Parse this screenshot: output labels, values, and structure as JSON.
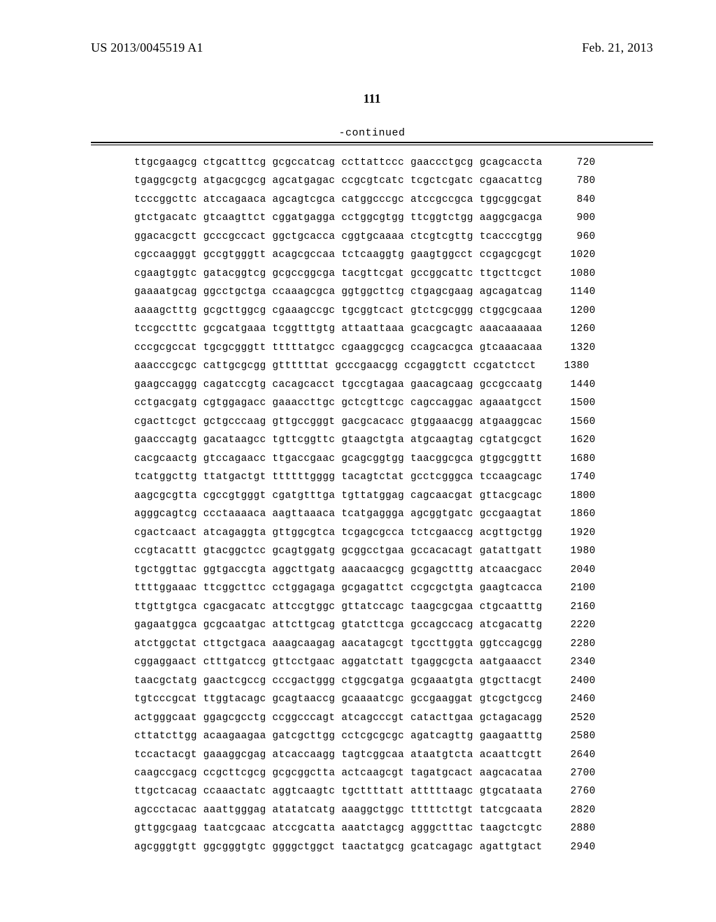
{
  "header": {
    "publication_number": "US 2013/0045519 A1",
    "publication_date": "Feb. 21, 2013"
  },
  "page_number": "111",
  "continued_label": "-continued",
  "sequence": {
    "font_family": "Courier New",
    "font_size_pt": 10,
    "text_color": "#000000",
    "background_color": "#ffffff",
    "rows": [
      {
        "groups": [
          "ttgcgaagcg",
          "ctgcatttcg",
          "gcgccatcag",
          "ccttattccc",
          "gaaccctgcg",
          "gcagcaccta"
        ],
        "pos": 720
      },
      {
        "groups": [
          "tgaggcgctg",
          "atgacgcgcg",
          "agcatgagac",
          "ccgcgtcatc",
          "tcgctcgatc",
          "cgaacattcg"
        ],
        "pos": 780
      },
      {
        "groups": [
          "tcccggcttc",
          "atccagaaca",
          "agcagtcgca",
          "catggcccgc",
          "atccgccgca",
          "tggcggcgat"
        ],
        "pos": 840
      },
      {
        "groups": [
          "gtctgacatc",
          "gtcaagttct",
          "cggatgagga",
          "cctggcgtgg",
          "ttcggtctgg",
          "aaggcgacga"
        ],
        "pos": 900
      },
      {
        "groups": [
          "ggacacgctt",
          "gcccgccact",
          "ggctgcacca",
          "cggtgcaaaa",
          "ctcgtcgttg",
          "tcacccgtgg"
        ],
        "pos": 960
      },
      {
        "groups": [
          "cgccaagggt",
          "gccgtgggtt",
          "acagcgccaa",
          "tctcaaggtg",
          "gaagtggcct",
          "ccgagcgcgt"
        ],
        "pos": 1020
      },
      {
        "groups": [
          "cgaagtggtc",
          "gatacggtcg",
          "gcgccggcga",
          "tacgttcgat",
          "gccggcattc",
          "ttgcttcgct"
        ],
        "pos": 1080
      },
      {
        "groups": [
          "gaaaatgcag",
          "ggcctgctga",
          "ccaaagcgca",
          "ggtggcttcg",
          "ctgagcgaag",
          "agcagatcag"
        ],
        "pos": 1140
      },
      {
        "groups": [
          "aaaagctttg",
          "gcgcttggcg",
          "cgaaagccgc",
          "tgcggtcact",
          "gtctcgcggg",
          "ctggcgcaaa"
        ],
        "pos": 1200
      },
      {
        "groups": [
          "tccgcctttc",
          "gcgcatgaaa",
          "tcggtttgtg",
          "attaattaaa",
          "gcacgcagtc",
          "aaacaaaaaa"
        ],
        "pos": 1260
      },
      {
        "groups": [
          "cccgcgccat",
          "tgcgcgggtt",
          "tttttatgcc",
          "cgaaggcgcg",
          "ccagcacgca",
          "gtcaaacaaa"
        ],
        "pos": 1320
      },
      {
        "groups": [
          "aaacccgcgc",
          "cattgcgcgg",
          "gttttttat",
          "gcccgaacgg",
          "ccgaggtctt",
          "ccgatctcct"
        ],
        "pos": 1380
      },
      {
        "groups": [
          "gaagccaggg",
          "cagatccgtg",
          "cacagcacct",
          "tgccgtagaa",
          "gaacagcaag",
          "gccgccaatg"
        ],
        "pos": 1440
      },
      {
        "groups": [
          "cctgacgatg",
          "cgtggagacc",
          "gaaaccttgc",
          "gctcgttcgc",
          "cagccaggac",
          "agaaatgcct"
        ],
        "pos": 1500
      },
      {
        "groups": [
          "cgacttcgct",
          "gctgcccaag",
          "gttgccgggt",
          "gacgcacacc",
          "gtggaaacgg",
          "atgaaggcac"
        ],
        "pos": 1560
      },
      {
        "groups": [
          "gaacccagtg",
          "gacataagcc",
          "tgttcggttc",
          "gtaagctgta",
          "atgcaagtag",
          "cgtatgcgct"
        ],
        "pos": 1620
      },
      {
        "groups": [
          "cacgcaactg",
          "gtccagaacc",
          "ttgaccgaac",
          "gcagcggtgg",
          "taacggcgca",
          "gtggcggttt"
        ],
        "pos": 1680
      },
      {
        "groups": [
          "tcatggcttg",
          "ttatgactgt",
          "ttttttgggg",
          "tacagtctat",
          "gcctcgggca",
          "tccaagcagc"
        ],
        "pos": 1740
      },
      {
        "groups": [
          "aagcgcgtta",
          "cgccgtgggt",
          "cgatgtttga",
          "tgttatggag",
          "cagcaacgat",
          "gttacgcagc"
        ],
        "pos": 1800
      },
      {
        "groups": [
          "agggcagtcg",
          "ccctaaaaca",
          "aagttaaaca",
          "tcatgaggga",
          "agcggtgatc",
          "gccgaagtat"
        ],
        "pos": 1860
      },
      {
        "groups": [
          "cgactcaact",
          "atcagaggta",
          "gttggcgtca",
          "tcgagcgcca",
          "tctcgaaccg",
          "acgttgctgg"
        ],
        "pos": 1920
      },
      {
        "groups": [
          "ccgtacattt",
          "gtacggctcc",
          "gcagtggatg",
          "gcggcctgaa",
          "gccacacagt",
          "gatattgatt"
        ],
        "pos": 1980
      },
      {
        "groups": [
          "tgctggttac",
          "ggtgaccgta",
          "aggcttgatg",
          "aaacaacgcg",
          "gcgagctttg",
          "atcaacgacc"
        ],
        "pos": 2040
      },
      {
        "groups": [
          "ttttggaaac",
          "ttcggcttcc",
          "cctggagaga",
          "gcgagattct",
          "ccgcgctgta",
          "gaagtcacca"
        ],
        "pos": 2100
      },
      {
        "groups": [
          "ttgttgtgca",
          "cgacgacatc",
          "attccgtggc",
          "gttatccagc",
          "taagcgcgaa",
          "ctgcaatttg"
        ],
        "pos": 2160
      },
      {
        "groups": [
          "gagaatggca",
          "gcgcaatgac",
          "attcttgcag",
          "gtatcttcga",
          "gccagccacg",
          "atcgacattg"
        ],
        "pos": 2220
      },
      {
        "groups": [
          "atctggctat",
          "cttgctgaca",
          "aaagcaagag",
          "aacatagcgt",
          "tgccttggta",
          "ggtccagcgg"
        ],
        "pos": 2280
      },
      {
        "groups": [
          "cggaggaact",
          "ctttgatccg",
          "gttcctgaac",
          "aggatctatt",
          "tgaggcgcta",
          "aatgaaacct"
        ],
        "pos": 2340
      },
      {
        "groups": [
          "taacgctatg",
          "gaactcgccg",
          "cccgactggg",
          "ctggcgatga",
          "gcgaaatgta",
          "gtgcttacgt"
        ],
        "pos": 2400
      },
      {
        "groups": [
          "tgtcccgcat",
          "ttggtacagc",
          "gcagtaaccg",
          "gcaaaatcgc",
          "gccgaaggat",
          "gtcgctgccg"
        ],
        "pos": 2460
      },
      {
        "groups": [
          "actgggcaat",
          "ggagcgcctg",
          "ccggcccagt",
          "atcagcccgt",
          "catacttgaa",
          "gctagacagg"
        ],
        "pos": 2520
      },
      {
        "groups": [
          "cttatcttgg",
          "acaagaagaa",
          "gatcgcttgg",
          "cctcgcgcgc",
          "agatcagttg",
          "gaagaatttg"
        ],
        "pos": 2580
      },
      {
        "groups": [
          "tccactacgt",
          "gaaaggcgag",
          "atcaccaagg",
          "tagtcggcaa",
          "ataatgtcta",
          "acaattcgtt"
        ],
        "pos": 2640
      },
      {
        "groups": [
          "caagccgacg",
          "ccgcttcgcg",
          "gcgcggctta",
          "actcaagcgt",
          "tagatgcact",
          "aagcacataa"
        ],
        "pos": 2700
      },
      {
        "groups": [
          "ttgctcacag",
          "ccaaactatc",
          "aggtcaagtc",
          "tgcttttatt",
          "atttttaagc",
          "gtgcataata"
        ],
        "pos": 2760
      },
      {
        "groups": [
          "agccctacac",
          "aaattgggag",
          "atatatcatg",
          "aaaggctggc",
          "tttttcttgt",
          "tatcgcaata"
        ],
        "pos": 2820
      },
      {
        "groups": [
          "gttggcgaag",
          "taatcgcaac",
          "atccgcatta",
          "aaatctagcg",
          "agggctttac",
          "taagctcgtc"
        ],
        "pos": 2880
      },
      {
        "groups": [
          "agcgggtgtt",
          "ggcgggtgtc",
          "ggggctggct",
          "taactatgcg",
          "gcatcagagc",
          "agattgtact"
        ],
        "pos": 2940
      }
    ]
  }
}
